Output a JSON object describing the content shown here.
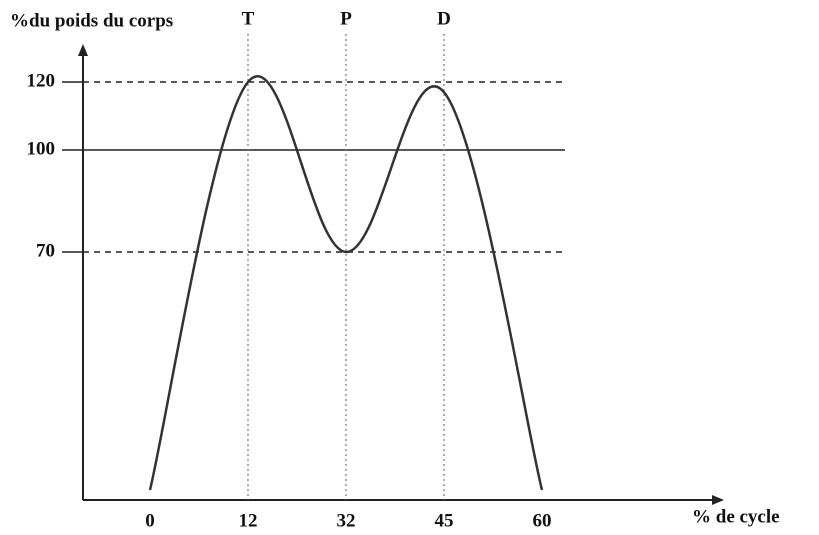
{
  "chart_data": {
    "type": "line",
    "y_label": "%du poids du corps",
    "x_label": "% de cycle",
    "categories": [
      "0",
      "12",
      "32",
      "45",
      "60"
    ],
    "values": [
      0,
      120,
      70,
      117,
      0
    ],
    "color": "#333333",
    "ylim": [
      0,
      130
    ],
    "yticks": [
      70,
      100,
      120
    ],
    "grid_dash": [
      "dashed",
      "solid",
      "dashed"
    ],
    "markers": [
      {
        "x": "12",
        "label": "T"
      },
      {
        "x": "32",
        "label": "P"
      },
      {
        "x": "45",
        "label": "D"
      }
    ]
  }
}
